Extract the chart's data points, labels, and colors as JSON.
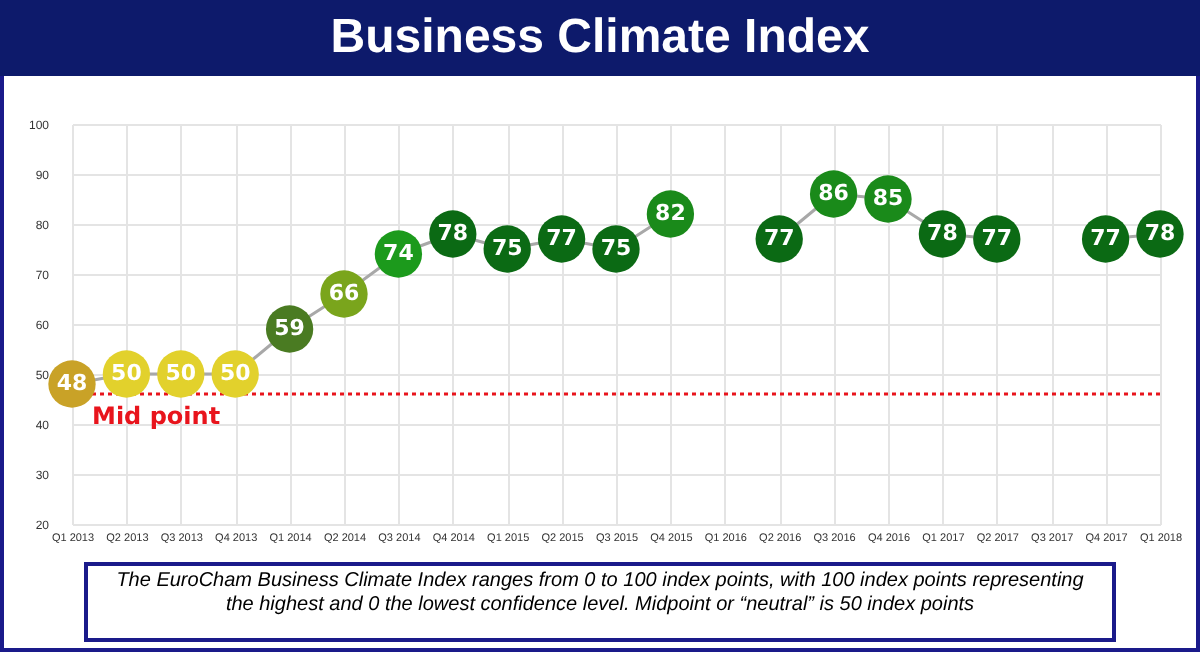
{
  "chart_data": {
    "type": "line",
    "title": "Business Climate Index",
    "categories": [
      "Q1 2013",
      "Q2 2013",
      "Q3 2013",
      "Q4 2013",
      "Q1 2014",
      "Q2 2014",
      "Q3 2014",
      "Q4 2014",
      "Q1 2015",
      "Q2 2015",
      "Q3 2015",
      "Q4 2015",
      "Q1 2016",
      "Q2 2016",
      "Q3 2016",
      "Q4 2016",
      "Q1 2017",
      "Q2 2017",
      "Q3 2017",
      "Q4 2017",
      "Q1 2018"
    ],
    "values": [
      48,
      50,
      50,
      50,
      59,
      66,
      74,
      78,
      75,
      77,
      75,
      82,
      null,
      77,
      86,
      85,
      78,
      77,
      null,
      77,
      78
    ],
    "colors": [
      "#c9a227",
      "#e2d12c",
      "#e2d12c",
      "#e2d12c",
      "#4a7b22",
      "#7aa51c",
      "#1c9a1c",
      "#0b6a14",
      "#0b6a14",
      "#0b6a14",
      "#0b6a14",
      "#1a8a1a",
      "#0b6a14",
      "#0b6a14",
      "#1a8a1a",
      "#1a8a1a",
      "#0b6a14",
      "#0b6a14",
      "#0b6a14",
      "#0b6a14",
      "#0b6a14"
    ],
    "ylim": [
      20,
      100
    ],
    "yticks": [
      20,
      30,
      40,
      50,
      60,
      70,
      80,
      90,
      100
    ],
    "grid": true,
    "marker": "circle",
    "data_labels": true,
    "ref_lines": [
      {
        "axis": "y",
        "value": 46,
        "label": "Mid point",
        "color": "#e8141c",
        "line_style": "dotted"
      }
    ],
    "annotations": [
      "The EuroCham Business Climate Index ranges from 0 to 100 index points, with 100 index points representing the highest and 0 the lowest confidence level. Midpoint or “neutral” is 50 index points"
    ]
  }
}
